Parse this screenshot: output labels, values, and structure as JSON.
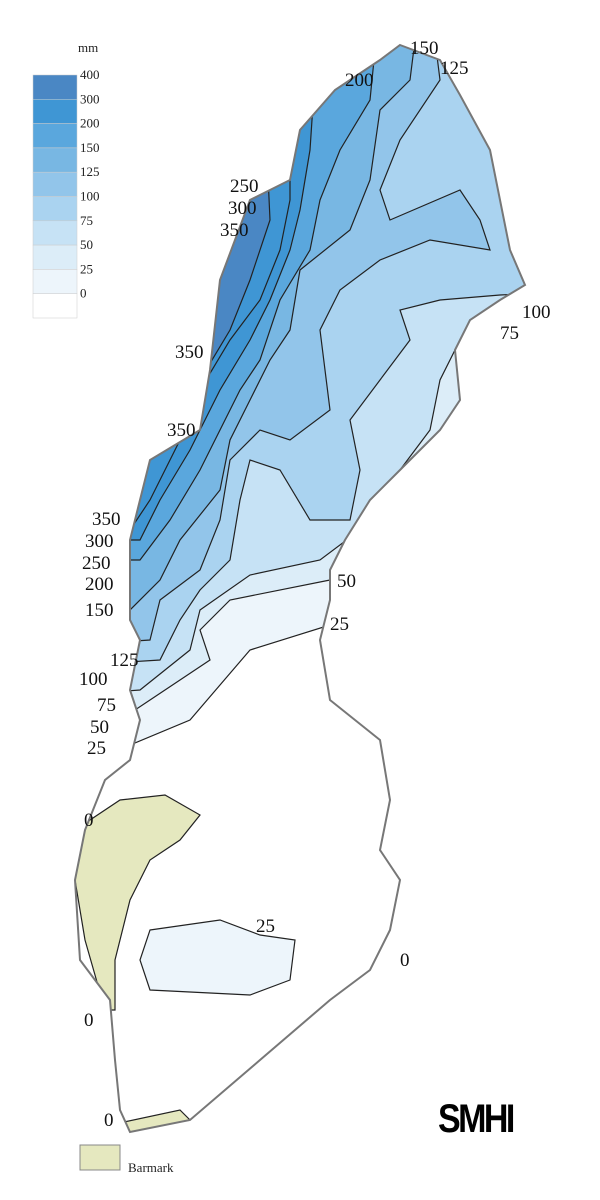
{
  "legend": {
    "unit": "mm",
    "items": [
      {
        "label": "400",
        "color": "#4a87c4"
      },
      {
        "label": "300",
        "color": "#3f96d4"
      },
      {
        "label": "200",
        "color": "#5aa7dd"
      },
      {
        "label": "150",
        "color": "#78b7e3"
      },
      {
        "label": "125",
        "color": "#92c5ea"
      },
      {
        "label": "100",
        "color": "#aad3f0"
      },
      {
        "label": "75",
        "color": "#c6e2f5"
      },
      {
        "label": "50",
        "color": "#dcedf8"
      },
      {
        "label": "25",
        "color": "#edf5fb"
      },
      {
        "label": "0",
        "color": "#ffffff"
      }
    ]
  },
  "contour_labels": [
    "150",
    "125",
    "200",
    "250",
    "300",
    "350",
    "350",
    "350",
    "350",
    "300",
    "250",
    "200",
    "150",
    "125",
    "100",
    "75",
    "50",
    "25",
    "100",
    "75",
    "50",
    "25",
    "25",
    "0",
    "0",
    "0",
    "0"
  ],
  "barmark": {
    "label": "Barmark",
    "color": "#e5e8bf"
  },
  "logo": "SMHI"
}
